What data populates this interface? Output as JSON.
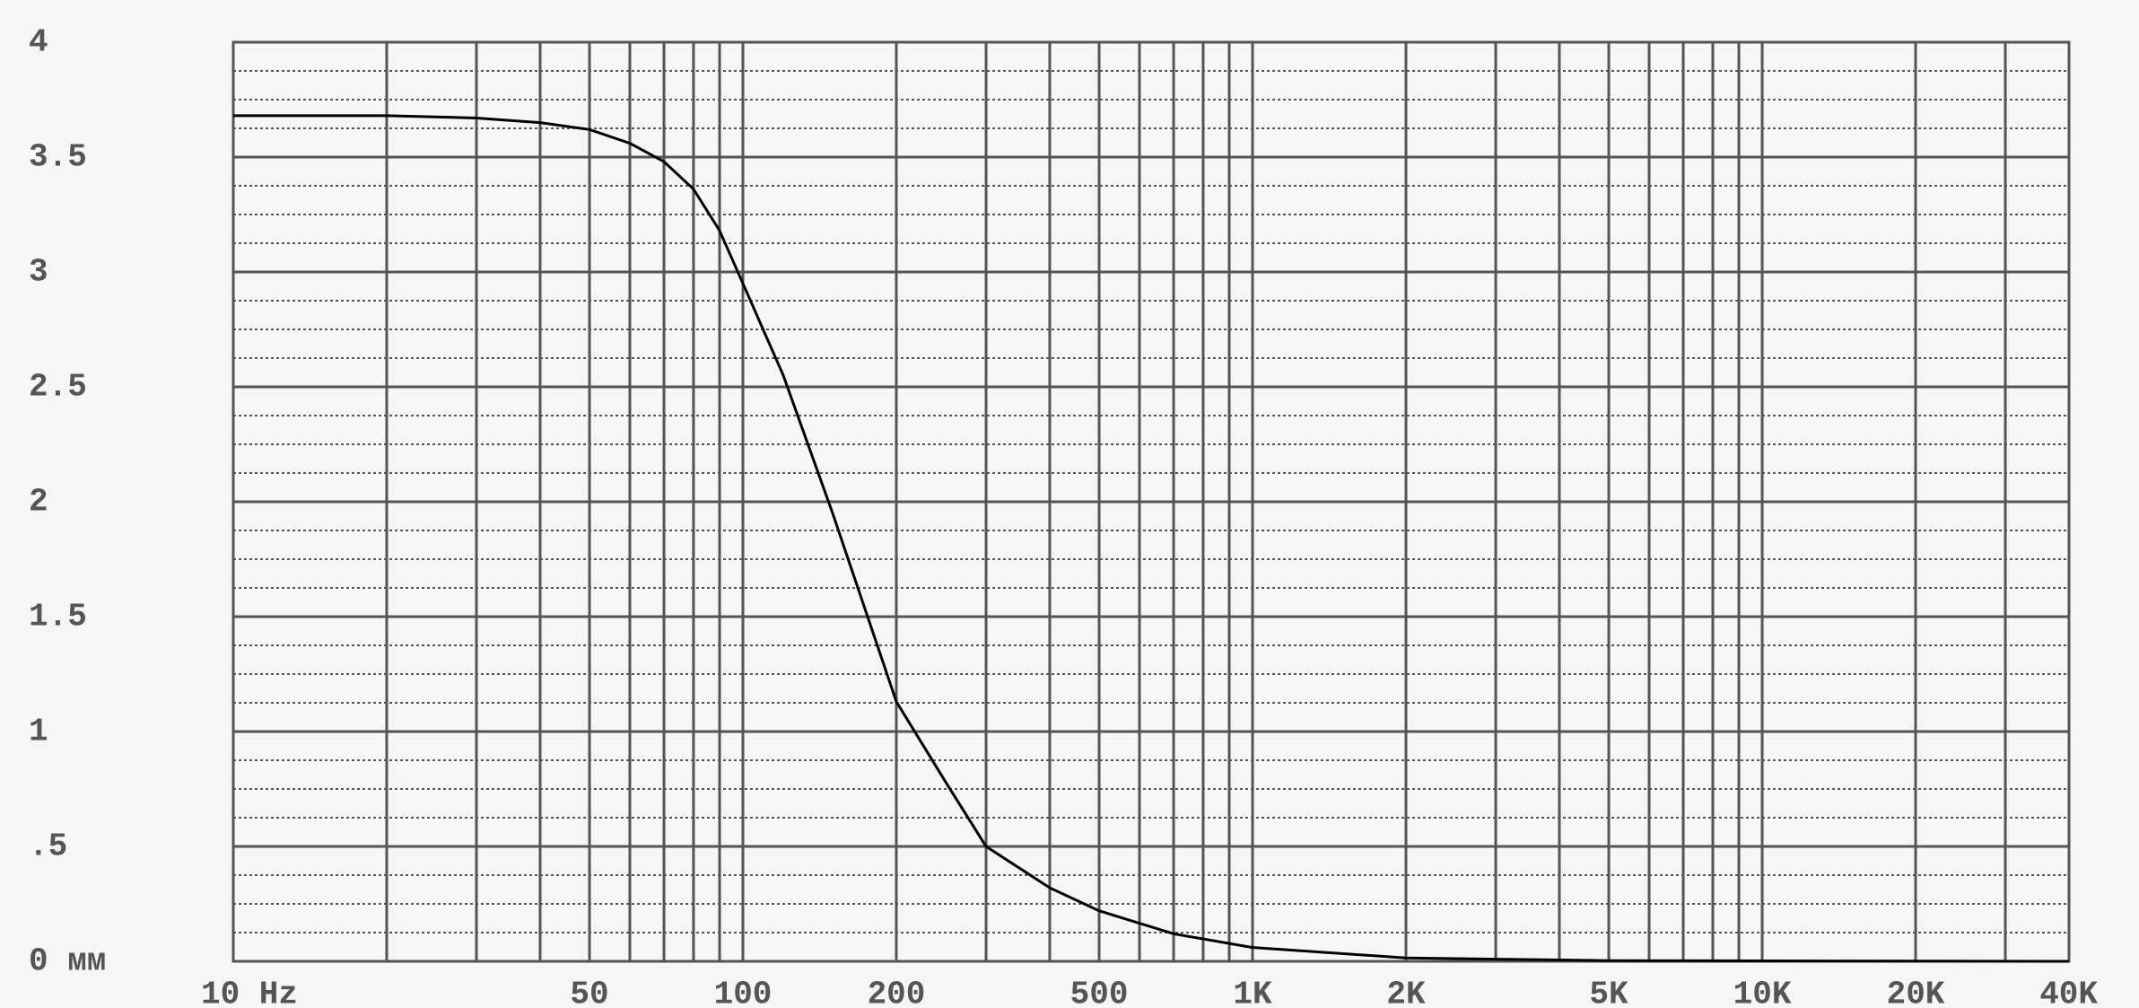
{
  "chart_data": {
    "type": "line",
    "log_x": true,
    "x": [
      10,
      20,
      30,
      40,
      50,
      60,
      70,
      80,
      90,
      100,
      120,
      150,
      200,
      250,
      300,
      400,
      500,
      700,
      1000,
      2000,
      5000,
      40000
    ],
    "values": [
      3.68,
      3.68,
      3.67,
      3.65,
      3.62,
      3.56,
      3.48,
      3.36,
      3.18,
      2.95,
      2.55,
      1.95,
      1.13,
      0.78,
      0.5,
      0.32,
      0.22,
      0.12,
      0.06,
      0.015,
      0.003,
      0
    ],
    "color": "#000000",
    "xlim": [
      10,
      40000
    ],
    "ylim": [
      0,
      4
    ],
    "xticks": [
      {
        "value": 10,
        "label": "10 Hz"
      },
      50,
      100,
      200,
      500,
      {
        "value": 1000,
        "label": "1K"
      },
      {
        "value": 2000,
        "label": "2K"
      },
      {
        "value": 5000,
        "label": "5K"
      },
      {
        "value": 10000,
        "label": "10K"
      },
      {
        "value": 20000,
        "label": "20K"
      },
      {
        "value": 40000,
        "label": "40K"
      }
    ],
    "xgrid": [
      20,
      30,
      40,
      60,
      70,
      80,
      90,
      300,
      400,
      600,
      700,
      800,
      900,
      3000,
      4000,
      6000,
      7000,
      8000,
      9000,
      30000
    ],
    "yticks": [
      {
        "value": 0,
        "label": "0 мм"
      },
      {
        "value": 0.5,
        "label": ".5"
      },
      1,
      1.5,
      2,
      2.5,
      3,
      3.5,
      4
    ],
    "ygrid_minor": [
      0.125,
      0.25,
      0.375,
      0.625,
      0.75,
      0.875,
      1.125,
      1.25,
      1.375,
      1.625,
      1.75,
      1.875,
      2.125,
      2.25,
      2.375,
      2.625,
      2.75,
      2.875,
      3.125,
      3.25,
      3.375,
      3.625,
      3.75,
      3.875
    ],
    "grid": true
  }
}
